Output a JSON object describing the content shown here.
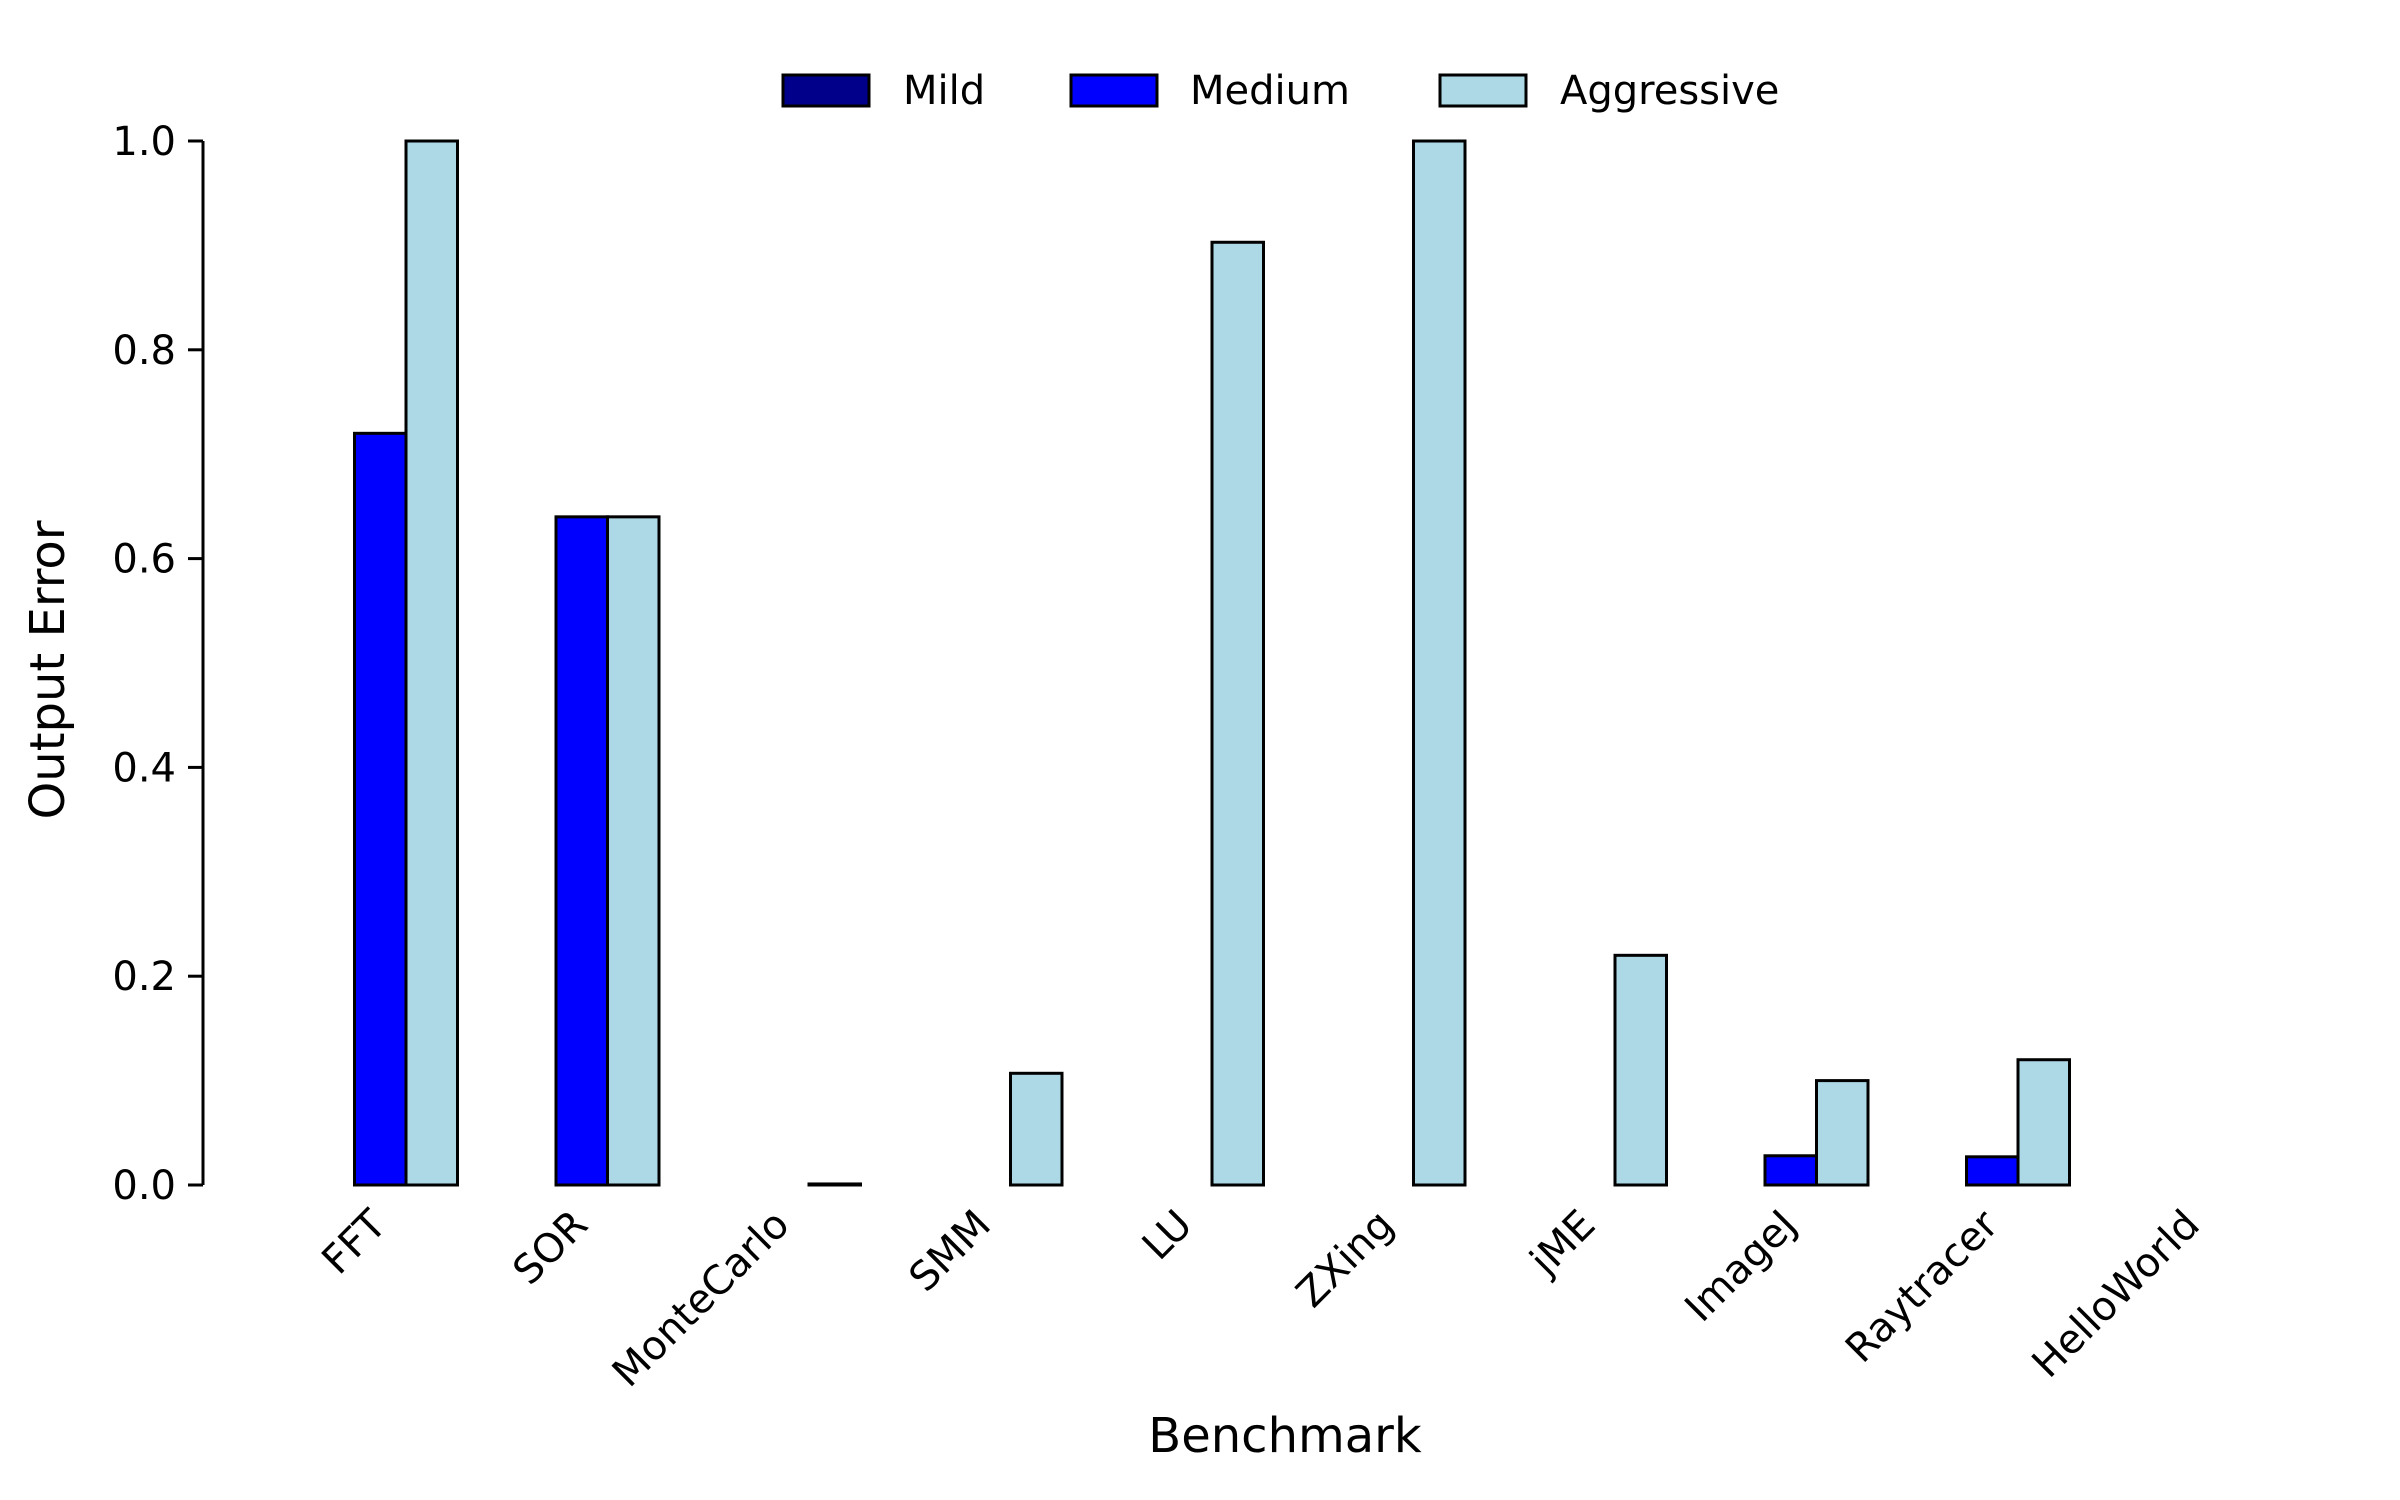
{
  "chart_data": {
    "type": "bar",
    "title": "",
    "xlabel": "Benchmark",
    "ylabel": "Output Error",
    "ylim": [
      0,
      1.0
    ],
    "yticks": [
      0.0,
      0.2,
      0.4,
      0.6,
      0.8,
      1.0
    ],
    "ytick_labels": [
      "0.0",
      "0.2",
      "0.4",
      "0.6",
      "0.8",
      "1.0"
    ],
    "grid": false,
    "legend_position": "top-center",
    "categories": [
      "FFT",
      "SOR",
      "MonteCarlo",
      "SMM",
      "LU",
      "ZXing",
      "jME",
      "ImageJ",
      "Raytracer",
      "HelloWorld"
    ],
    "series": [
      {
        "name": "Mild",
        "color": "#00008b",
        "values": [
          0,
          0,
          0,
          0,
          0,
          0,
          0,
          0,
          0,
          0
        ]
      },
      {
        "name": "Medium",
        "color": "#0000ff",
        "values": [
          0.72,
          0.64,
          0,
          0,
          0,
          0,
          0,
          0.028,
          0.027,
          0
        ]
      },
      {
        "name": "Aggressive",
        "color": "#add8e6",
        "values": [
          1.0,
          0.64,
          0.001,
          0.107,
          0.903,
          1.0,
          0.22,
          0.1,
          0.12,
          0
        ]
      }
    ]
  }
}
